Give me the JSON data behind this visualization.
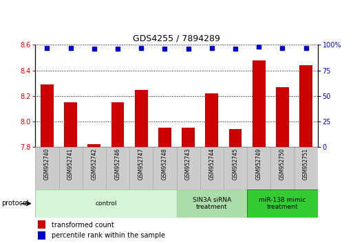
{
  "title": "GDS4255 / 7894289",
  "samples": [
    "GSM952740",
    "GSM952741",
    "GSM952742",
    "GSM952746",
    "GSM952747",
    "GSM952748",
    "GSM952743",
    "GSM952744",
    "GSM952745",
    "GSM952749",
    "GSM952750",
    "GSM952751"
  ],
  "bar_values": [
    8.29,
    8.15,
    7.82,
    8.15,
    8.25,
    7.95,
    7.95,
    8.22,
    7.94,
    8.48,
    8.27,
    8.44
  ],
  "percentile_values": [
    97,
    97,
    96,
    96,
    97,
    96,
    96,
    97,
    96,
    98,
    97,
    97
  ],
  "bar_color": "#cc0000",
  "dot_color": "#0000cc",
  "ylim_left": [
    7.8,
    8.6
  ],
  "ylim_right": [
    0,
    100
  ],
  "yticks_left": [
    7.8,
    8.0,
    8.2,
    8.4,
    8.6
  ],
  "yticks_right": [
    0,
    25,
    50,
    75,
    100
  ],
  "groups": [
    {
      "label": "control",
      "start": 0,
      "end": 6,
      "color": "#d6f5d6",
      "edge_color": "#aaccaa"
    },
    {
      "label": "SIN3A siRNA\ntreatment",
      "start": 6,
      "end": 9,
      "color": "#aaddaa",
      "edge_color": "#aaccaa"
    },
    {
      "label": "miR-138 mimic\ntreatment",
      "start": 9,
      "end": 12,
      "color": "#33cc33",
      "edge_color": "#228822"
    }
  ],
  "protocol_label": "protocol",
  "legend_bar_label": "transformed count",
  "legend_dot_label": "percentile rank within the sample",
  "tick_label_area_color": "#cccccc",
  "tick_label_area_edge": "#aaaaaa",
  "spine_color": "#000000"
}
